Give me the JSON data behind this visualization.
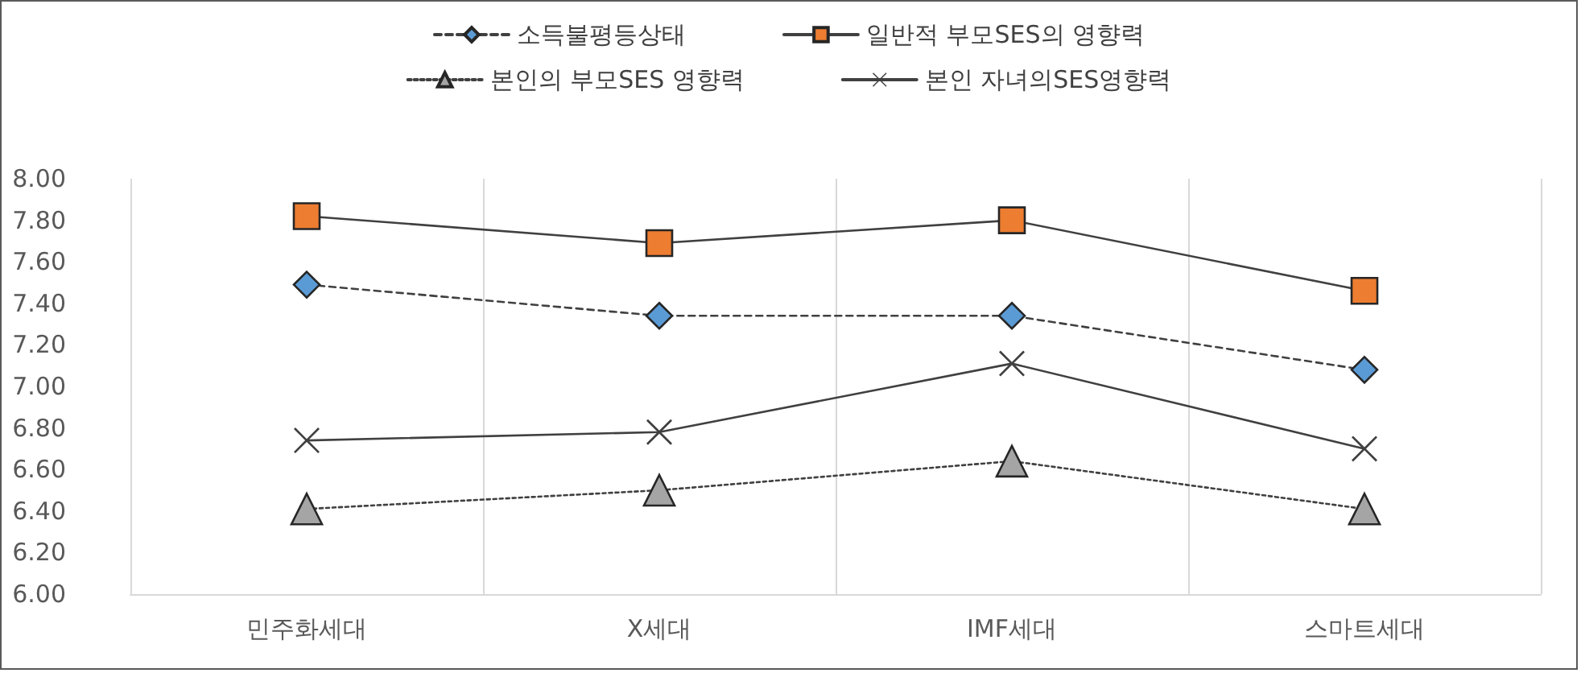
{
  "chart_data": {
    "type": "line",
    "categories": [
      "민주화세대",
      "X세대",
      "IMF세대",
      "스마트세대"
    ],
    "series": [
      {
        "name": "소득불평등상태",
        "color": "#5b9bd5",
        "marker": "diamond",
        "line_style": "dashed",
        "values": [
          7.49,
          7.34,
          7.34,
          7.08
        ]
      },
      {
        "name": "일반적 부모SES의 영향력",
        "color": "#ed7d31",
        "marker": "square",
        "line_style": "solid",
        "values": [
          7.82,
          7.69,
          7.8,
          7.46
        ]
      },
      {
        "name": "본인의 부모SES 영향력",
        "color": "#a5a5a5",
        "marker": "triangle",
        "line_style": "dotted",
        "values": [
          6.41,
          6.5,
          6.64,
          6.41
        ]
      },
      {
        "name": "본인 자녀의SES영향력",
        "color": "#404040",
        "marker": "cross",
        "line_style": "solid",
        "values": [
          6.74,
          6.78,
          7.11,
          6.7
        ]
      }
    ],
    "ylim": [
      6.0,
      8.0
    ],
    "yticks": [
      {
        "value": 6.0,
        "label": "6.00"
      },
      {
        "value": 6.2,
        "label": "6.20"
      },
      {
        "value": 6.4,
        "label": "6.40"
      },
      {
        "value": 6.6,
        "label": "6.60"
      },
      {
        "value": 6.8,
        "label": "6.80"
      },
      {
        "value": 7.0,
        "label": "7.00"
      },
      {
        "value": 7.2,
        "label": "7.20"
      },
      {
        "value": 7.4,
        "label": "7.40"
      },
      {
        "value": 7.6,
        "label": "7.60"
      },
      {
        "value": 7.8,
        "label": "7.80"
      },
      {
        "value": 8.0,
        "label": "8.00"
      }
    ],
    "grid": "x",
    "legend": "top"
  }
}
